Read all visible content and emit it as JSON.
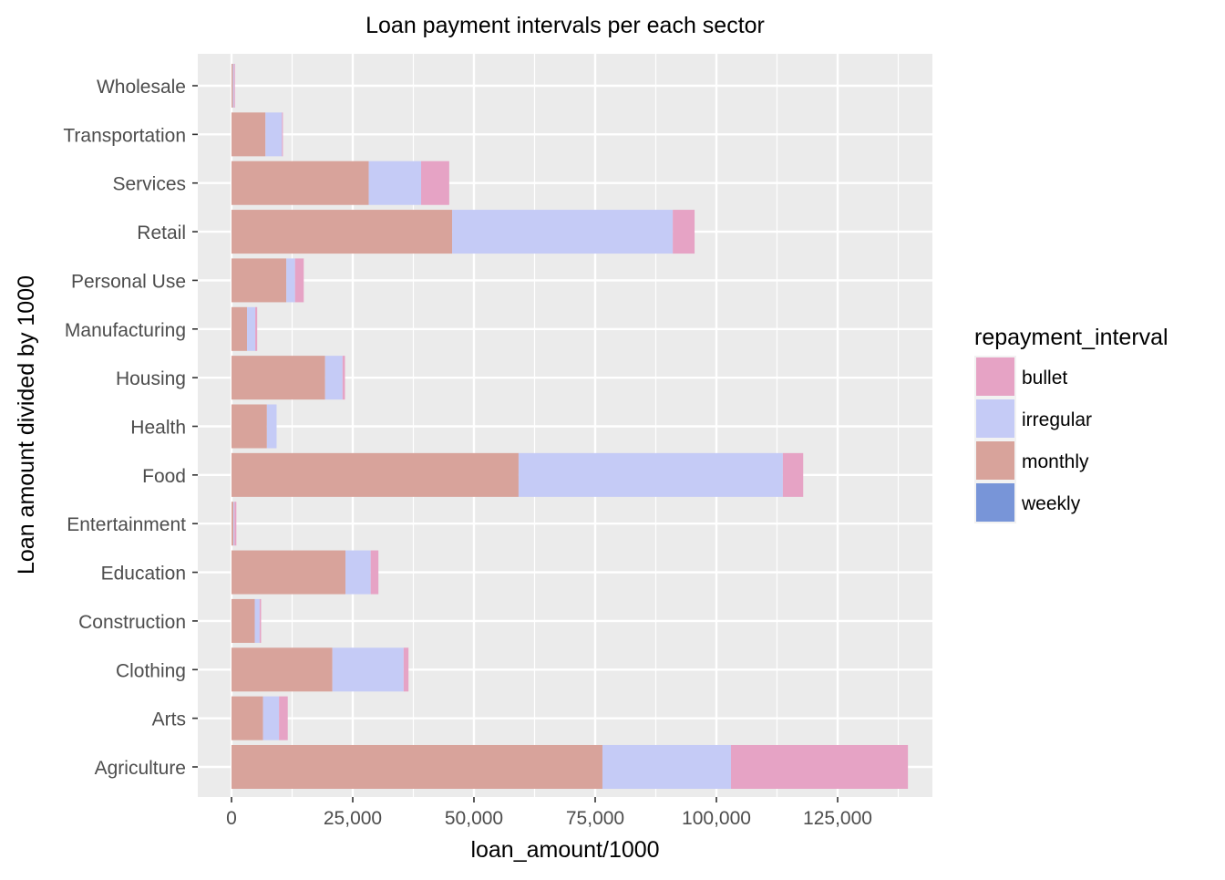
{
  "chart_data": {
    "type": "bar",
    "orientation": "horizontal",
    "stacked": true,
    "title": "Loan payment intervals per each sector",
    "xlabel": "loan_amount/1000",
    "ylabel": "Loan amount divided by 1000",
    "xlim": [
      0,
      145000
    ],
    "xticks": [
      0,
      25000,
      50000,
      75000,
      100000,
      125000
    ],
    "xtick_labels": [
      "0",
      "25,000",
      "50,000",
      "75,000",
      "100,000",
      "125,000"
    ],
    "grid": true,
    "legend": {
      "title": "repayment_interval",
      "position": "right"
    },
    "categories": [
      "Agriculture",
      "Arts",
      "Clothing",
      "Construction",
      "Education",
      "Entertainment",
      "Food",
      "Health",
      "Housing",
      "Manufacturing",
      "Personal Use",
      "Retail",
      "Services",
      "Transportation",
      "Wholesale"
    ],
    "series": [
      {
        "name": "monthly",
        "color": "#d8a39b",
        "values": [
          76500,
          6500,
          20800,
          4800,
          23500,
          400,
          59200,
          7300,
          19300,
          3200,
          11300,
          45500,
          28300,
          7000,
          300
        ]
      },
      {
        "name": "irregular",
        "color": "#c5cbf6",
        "values": [
          26500,
          3300,
          14700,
          1000,
          5200,
          200,
          54500,
          2000,
          3600,
          1700,
          1800,
          45500,
          10800,
          3400,
          200
        ]
      },
      {
        "name": "bullet",
        "color": "#e6a3c5",
        "values": [
          36500,
          1800,
          1000,
          300,
          1600,
          400,
          4200,
          0,
          500,
          400,
          1800,
          4500,
          5800,
          200,
          200
        ]
      },
      {
        "name": "weekly",
        "color": "#7895d8",
        "values": [
          0,
          0,
          0,
          0,
          0,
          0,
          0,
          0,
          0,
          0,
          0,
          0,
          0,
          0,
          0
        ]
      }
    ],
    "legend_order": [
      "bullet",
      "irregular",
      "monthly",
      "weekly"
    ],
    "panel_background": "#ebebeb",
    "grid_color": "#ffffff"
  }
}
